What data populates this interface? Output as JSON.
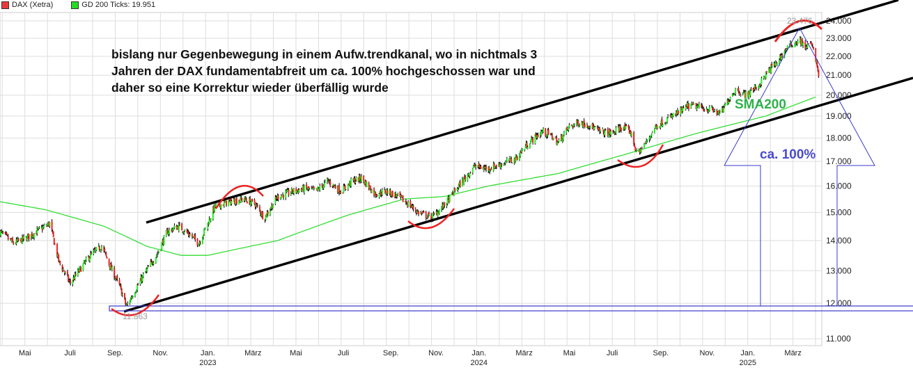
{
  "legend": [
    {
      "label": "DAX (Xetra)",
      "color": "#e83a3a"
    },
    {
      "label": "GD 200 Ticks: 19.951",
      "color": "#22dd22"
    }
  ],
  "annotations": {
    "note_lines": [
      "bislang nur Gegenbewegung in einem Aufw.trendkanal, wo in nichtmals 3",
      "Jahren der DAX fundamentabfreit um ca. 100% hochgeschossen war und",
      "daher so eine Korrektur wieder überfällig wurde"
    ],
    "sma_label": "SMA200",
    "percent_label": "ca. 100%",
    "low_marker": "11.863",
    "high_marker": "23.476"
  },
  "chart_data": {
    "type": "candlestick",
    "title": "",
    "xlabel": "",
    "ylabel": "",
    "y_scale": "log",
    "ylim": [
      10700,
      25000
    ],
    "grid": true,
    "legend_position": "top-left",
    "x_unit": "months since mid-April 2022",
    "y_ticks": [
      "11.000",
      "12.000",
      "13.000",
      "14.000",
      "15.000",
      "16.000",
      "17.000",
      "18.000",
      "19.000",
      "20.000",
      "21.000",
      "22.000",
      "23.000",
      "24.000"
    ],
    "y_tick_values": [
      11000,
      12000,
      13000,
      14000,
      15000,
      16000,
      17000,
      18000,
      19000,
      20000,
      21000,
      22000,
      23000,
      24000
    ],
    "x_ticks": [
      {
        "t": 1.1,
        "label": "Mai",
        "year": ""
      },
      {
        "t": 3.1,
        "label": "Juli",
        "year": ""
      },
      {
        "t": 5.1,
        "label": "Sep.",
        "year": ""
      },
      {
        "t": 7.1,
        "label": "Nov.",
        "year": ""
      },
      {
        "t": 9.2,
        "label": "Jan.",
        "year": "2023"
      },
      {
        "t": 11.2,
        "label": "März",
        "year": ""
      },
      {
        "t": 13.1,
        "label": "Mai",
        "year": ""
      },
      {
        "t": 15.2,
        "label": "Juli",
        "year": ""
      },
      {
        "t": 17.3,
        "label": "Sep.",
        "year": ""
      },
      {
        "t": 19.3,
        "label": "Nov.",
        "year": ""
      },
      {
        "t": 21.2,
        "label": "Jan.",
        "year": "2024"
      },
      {
        "t": 23.2,
        "label": "März",
        "year": ""
      },
      {
        "t": 25.2,
        "label": "Mai",
        "year": ""
      },
      {
        "t": 27.1,
        "label": "Juli",
        "year": ""
      },
      {
        "t": 29.25,
        "label": "Sep.",
        "year": ""
      },
      {
        "t": 31.3,
        "label": "Nov.",
        "year": ""
      },
      {
        "t": 33.1,
        "label": "Jan.",
        "year": "2025"
      },
      {
        "t": 35.1,
        "label": "März",
        "year": ""
      }
    ],
    "series": [
      {
        "name": "DAX (Xetra)",
        "type": "candlestick",
        "points": [
          [
            0,
            14300
          ],
          [
            0.6,
            13900
          ],
          [
            1.2,
            14100
          ],
          [
            1.8,
            14400
          ],
          [
            2.2,
            14600
          ],
          [
            2.6,
            13300
          ],
          [
            3.1,
            12600
          ],
          [
            3.5,
            13000
          ],
          [
            4.0,
            13500
          ],
          [
            4.5,
            13800
          ],
          [
            4.9,
            13100
          ],
          [
            5.3,
            12500
          ],
          [
            5.6,
            11900
          ],
          [
            5.9,
            12300
          ],
          [
            6.4,
            12900
          ],
          [
            7.0,
            13600
          ],
          [
            7.4,
            14300
          ],
          [
            7.9,
            14500
          ],
          [
            8.4,
            14200
          ],
          [
            8.8,
            13900
          ],
          [
            9.2,
            14600
          ],
          [
            9.5,
            15200
          ],
          [
            10.1,
            15400
          ],
          [
            10.8,
            15500
          ],
          [
            11.3,
            15300
          ],
          [
            11.7,
            14800
          ],
          [
            12.3,
            15600
          ],
          [
            13.0,
            15800
          ],
          [
            13.5,
            15900
          ],
          [
            14.0,
            15800
          ],
          [
            14.5,
            16200
          ],
          [
            15.1,
            15800
          ],
          [
            15.6,
            16200
          ],
          [
            16.0,
            16300
          ],
          [
            16.6,
            15700
          ],
          [
            17.1,
            15800
          ],
          [
            17.6,
            15600
          ],
          [
            18.1,
            15300
          ],
          [
            18.5,
            15000
          ],
          [
            19.1,
            14800
          ],
          [
            19.7,
            15300
          ],
          [
            20.3,
            16000
          ],
          [
            21.0,
            16800
          ],
          [
            21.6,
            16700
          ],
          [
            22.2,
            16900
          ],
          [
            22.8,
            17100
          ],
          [
            23.4,
            17800
          ],
          [
            24.0,
            18300
          ],
          [
            24.4,
            18100
          ],
          [
            24.7,
            17800
          ],
          [
            25.2,
            18500
          ],
          [
            25.6,
            18700
          ],
          [
            26.1,
            18600
          ],
          [
            26.5,
            18300
          ],
          [
            27.1,
            18200
          ],
          [
            27.5,
            18500
          ],
          [
            27.9,
            18300
          ],
          [
            28.2,
            17300
          ],
          [
            28.6,
            17800
          ],
          [
            29.0,
            18500
          ],
          [
            29.6,
            18900
          ],
          [
            30.1,
            19200
          ],
          [
            30.5,
            19500
          ],
          [
            31.1,
            19400
          ],
          [
            31.5,
            19300
          ],
          [
            31.9,
            19100
          ],
          [
            32.3,
            19900
          ],
          [
            32.6,
            20300
          ],
          [
            33.0,
            20000
          ],
          [
            33.6,
            20500
          ],
          [
            34.0,
            21200
          ],
          [
            34.4,
            21700
          ],
          [
            34.8,
            22400
          ],
          [
            35.1,
            22700
          ],
          [
            35.4,
            22900
          ],
          [
            35.6,
            22500
          ],
          [
            35.9,
            22700
          ],
          [
            36.1,
            21900
          ],
          [
            36.3,
            20600
          ]
        ]
      },
      {
        "name": "GD 200 Ticks",
        "type": "line",
        "points": [
          [
            0,
            15400
          ],
          [
            2,
            15100
          ],
          [
            4.6,
            14500
          ],
          [
            6.5,
            13800
          ],
          [
            8,
            13500
          ],
          [
            9.2,
            13500
          ],
          [
            12.3,
            14000
          ],
          [
            15.4,
            14900
          ],
          [
            17.9,
            15500
          ],
          [
            19.7,
            15600
          ],
          [
            21.6,
            16000
          ],
          [
            24.7,
            16500
          ],
          [
            27.7,
            17300
          ],
          [
            30.8,
            18200
          ],
          [
            33.9,
            19000
          ],
          [
            36.2,
            19951
          ]
        ]
      }
    ]
  }
}
